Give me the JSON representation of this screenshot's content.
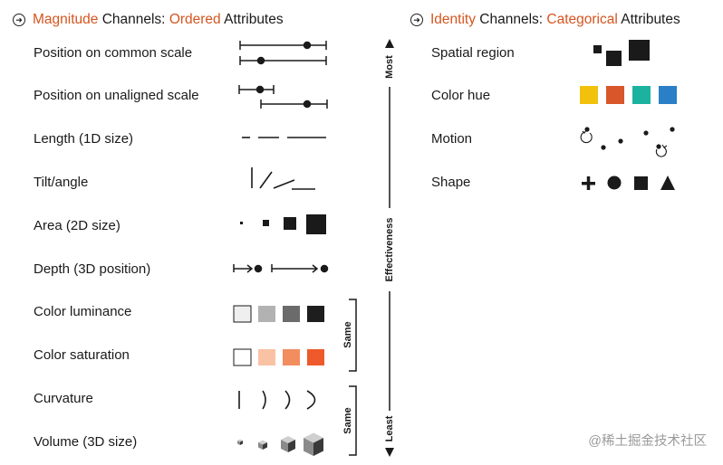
{
  "left_header": {
    "hl1": "Magnitude",
    "t1": " Channels: ",
    "hl2": "Ordered",
    "t2": " Attributes"
  },
  "right_header": {
    "hl1": "Identity",
    "t1": " Channels: ",
    "hl2": "Categorical",
    "t2": " Attributes"
  },
  "magnitude_channels": [
    "Position on common scale",
    "Position on unaligned scale",
    "Length (1D size)",
    "Tilt/angle",
    "Area (2D size)",
    "Depth (3D position)",
    "Color luminance",
    "Color saturation",
    "Curvature",
    "Volume (3D size)"
  ],
  "identity_channels": [
    "Spatial region",
    "Color hue",
    "Motion",
    "Shape"
  ],
  "axis": {
    "top": "Most",
    "middle": "Effectiveness",
    "bottom": "Least"
  },
  "brackets": {
    "same1": "Same",
    "same2": "Same"
  },
  "colors": {
    "accent": "#d4551f",
    "luminance": [
      "#efefef",
      "#b2b2b2",
      "#6b6b6b",
      "#1e1e1e"
    ],
    "saturation": [
      "#ffffff",
      "#f9c2a4",
      "#f28d5f",
      "#ee5a2b"
    ],
    "hue": [
      "#f2c10c",
      "#d9562a",
      "#1bb3a0",
      "#2a7fc6"
    ]
  },
  "watermark": "@稀土掘金技术社区"
}
